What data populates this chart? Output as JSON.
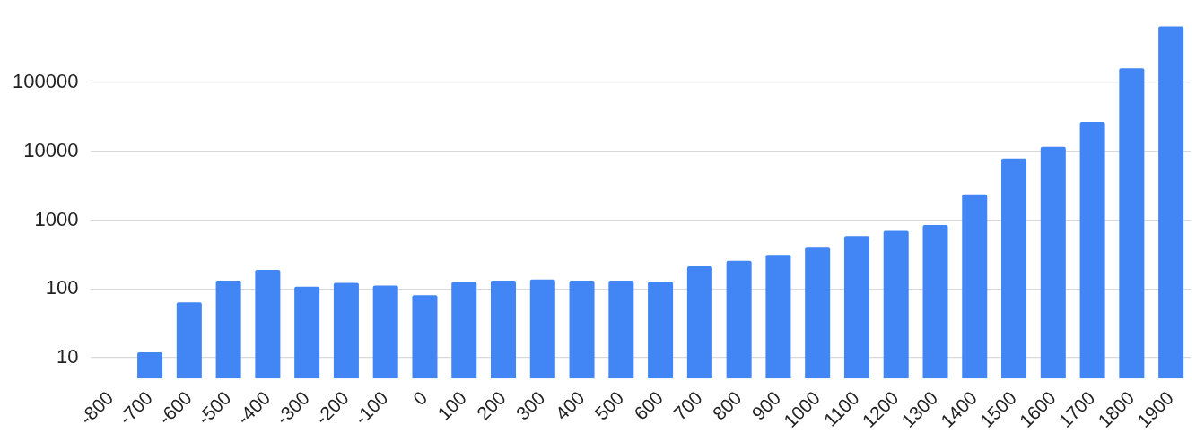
{
  "chart_data": {
    "type": "bar",
    "categories": [
      "-800",
      "-700",
      "-600",
      "-500",
      "-400",
      "-300",
      "-200",
      "-100",
      "0",
      "100",
      "200",
      "300",
      "400",
      "500",
      "600",
      "700",
      "800",
      "900",
      "1000",
      "1100",
      "1200",
      "1300",
      "1400",
      "1500",
      "1600",
      "1700",
      "1800",
      "1900"
    ],
    "values": [
      null,
      12,
      64,
      132,
      189,
      108,
      123,
      112,
      81,
      126,
      132,
      137,
      132,
      132,
      126,
      213,
      257,
      312,
      398,
      590,
      697,
      847,
      2370,
      7850,
      11600,
      26700,
      161000,
      653000
    ],
    "color": "#4285f4",
    "log": "y",
    "ylim": [
      5,
      700000
    ],
    "yticks": [
      10,
      100,
      1000,
      10000,
      100000
    ],
    "grid": "y"
  }
}
